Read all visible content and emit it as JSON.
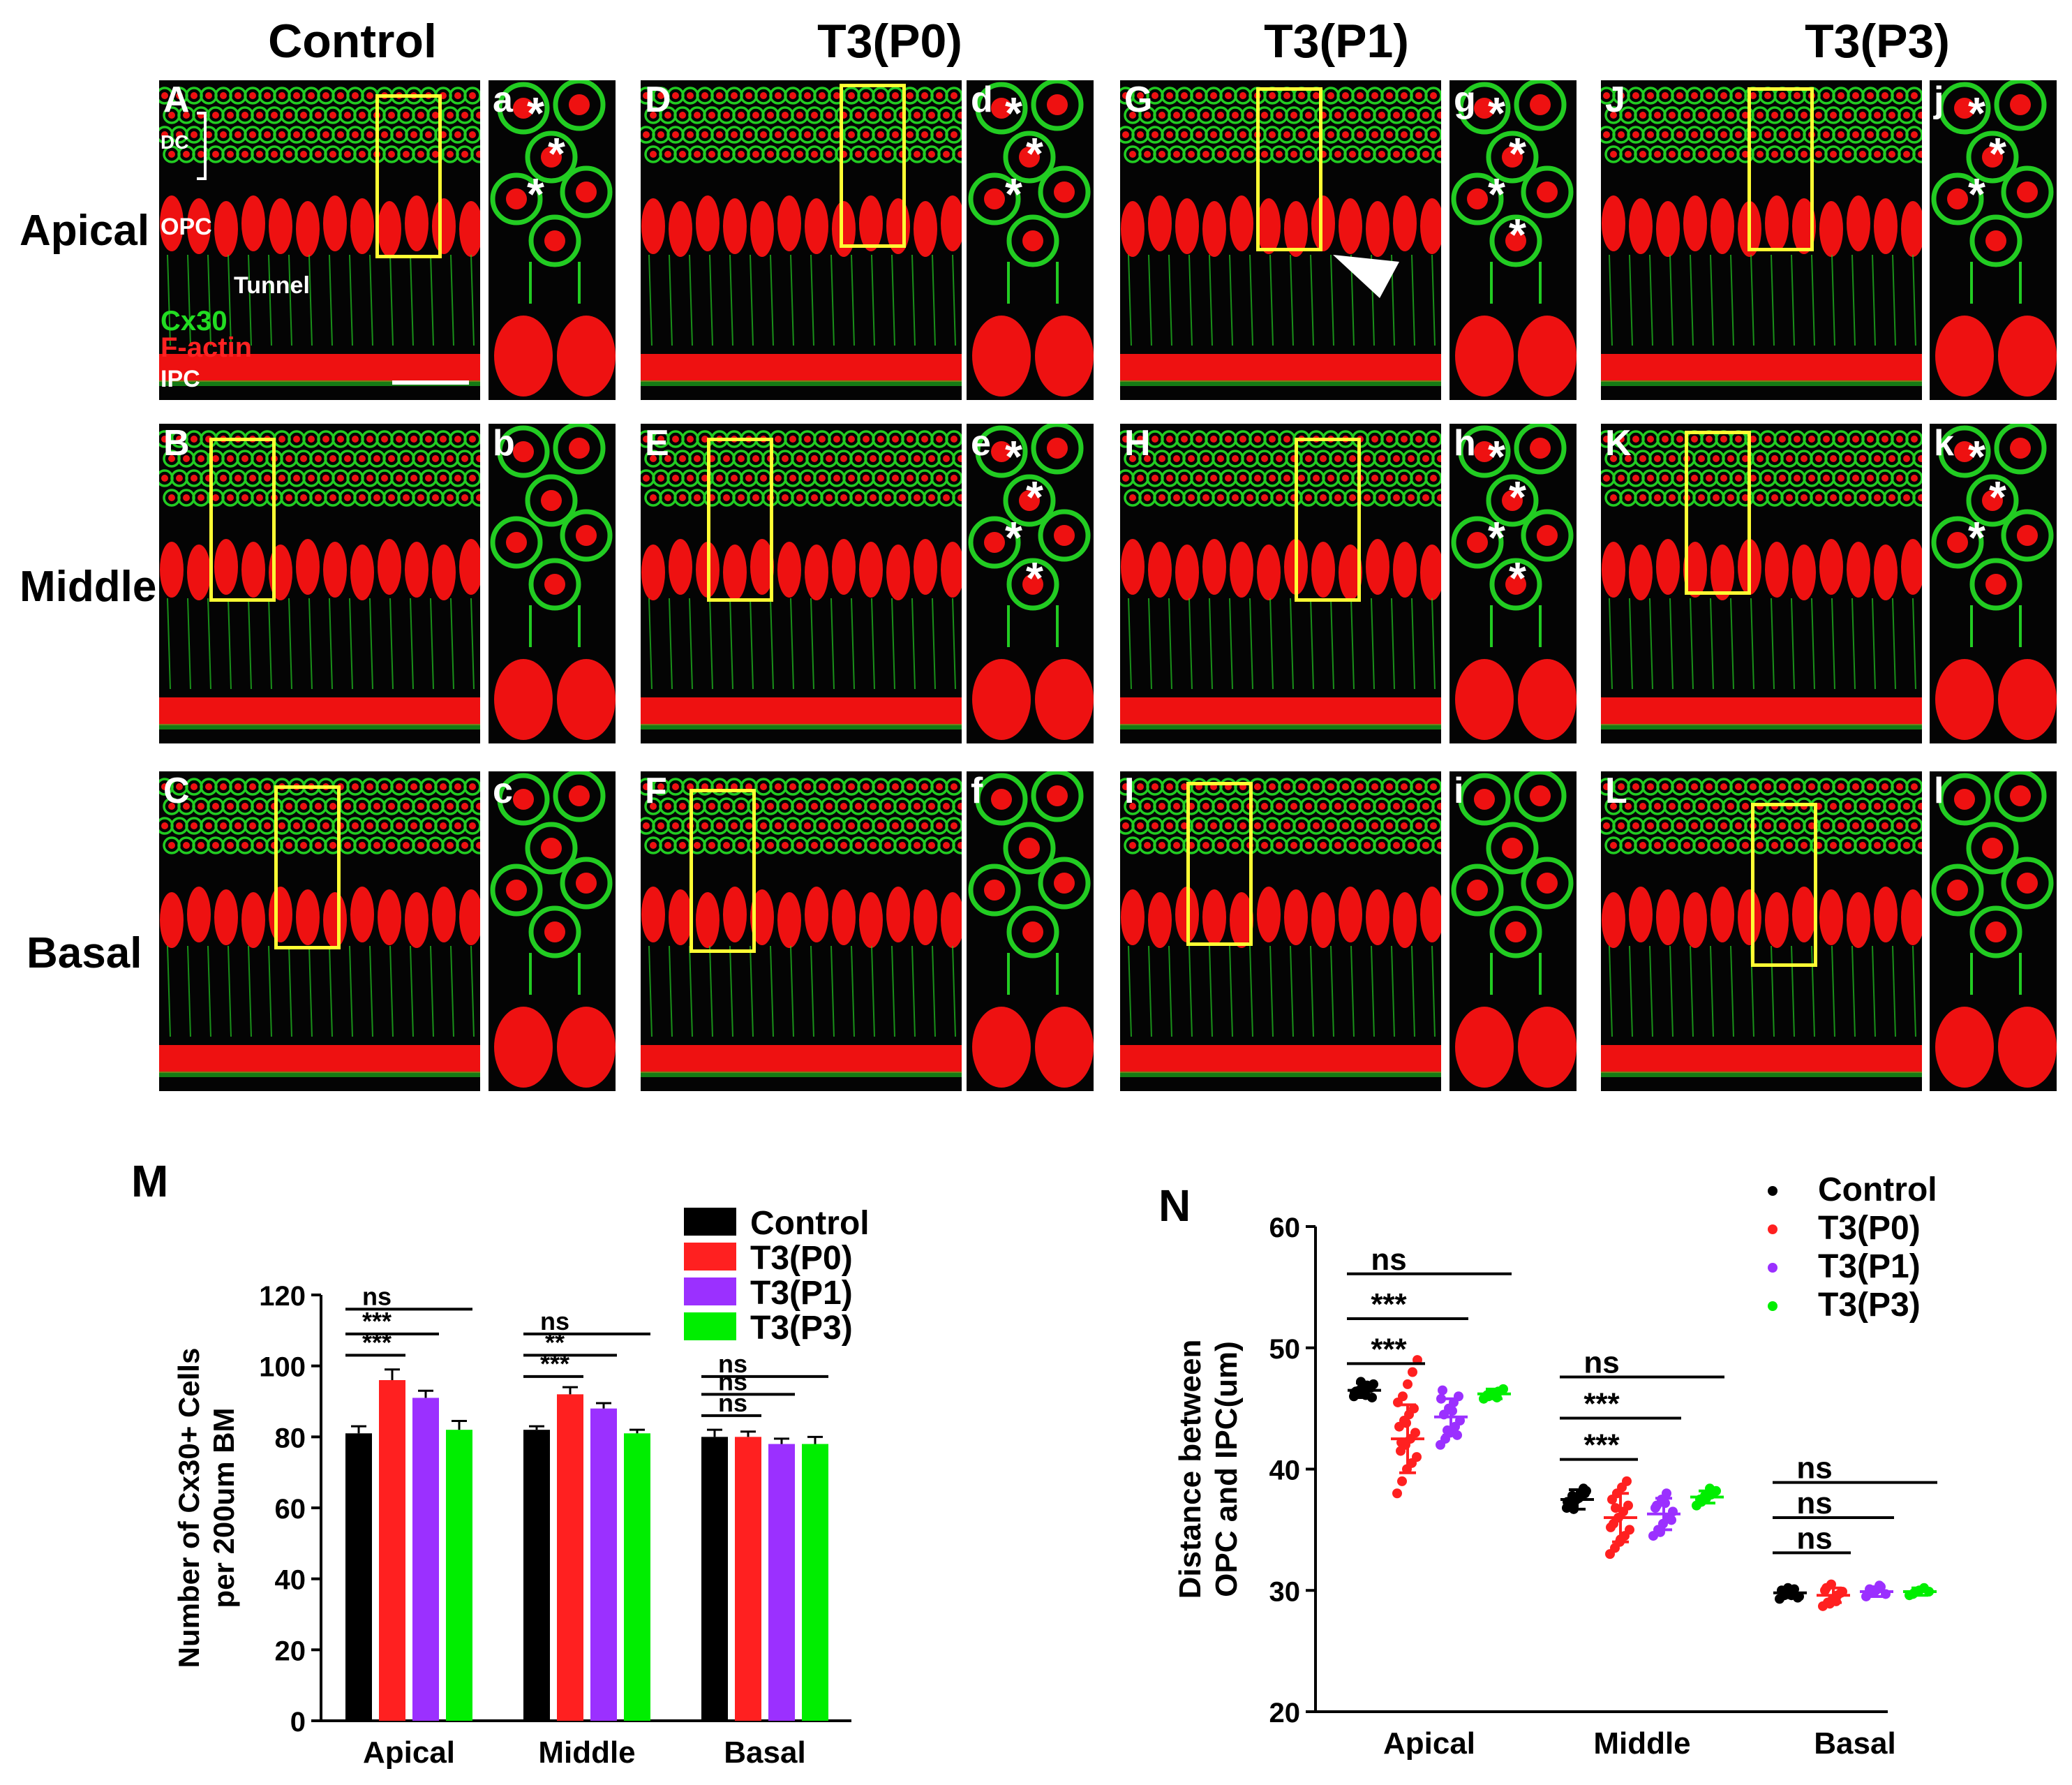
{
  "columns": [
    "Control",
    "T3(P0)",
    "T3(P1)",
    "T3(P3)"
  ],
  "rows": [
    "Apical",
    "Middle",
    "Basal"
  ],
  "panel_labels": {
    "main": [
      [
        "A",
        "D",
        "G",
        "J"
      ],
      [
        "B",
        "E",
        "H",
        "K"
      ],
      [
        "C",
        "F",
        "I",
        "L"
      ]
    ],
    "zoom": [
      [
        "a",
        "d",
        "g",
        "j"
      ],
      [
        "b",
        "e",
        "h",
        "k"
      ],
      [
        "c",
        "f",
        "i",
        "l"
      ]
    ]
  },
  "panel_a_annotations": {
    "dc": "DC",
    "opc": "OPC",
    "tunnel": "Tunnel",
    "cx30": "Cx30",
    "factin": "F-actin",
    "ipc": "IPC"
  },
  "star_glyph": "*",
  "colors": {
    "cx30": "#22cc22",
    "factin": "#ee1111",
    "roi": "#ffff33",
    "control": "#000000",
    "p0": "#ff2020",
    "p1": "#9b30ff",
    "p3": "#00ee00"
  },
  "chart_data": [
    {
      "id": "M",
      "type": "bar",
      "panel_letter": "M",
      "ylabel_line1": "Number of Cx30+ Cells",
      "ylabel_line2": "per 200um BM",
      "ylim": [
        0,
        120
      ],
      "yticks": [
        "0",
        "20",
        "40",
        "60",
        "80",
        "100",
        "120"
      ],
      "categories": [
        "Apical",
        "Middle",
        "Basal"
      ],
      "series": [
        {
          "name": "Control",
          "values": [
            81,
            82,
            80
          ],
          "errors": [
            2,
            1,
            2
          ]
        },
        {
          "name": "T3(P0)",
          "values": [
            96,
            92,
            80
          ],
          "errors": [
            3,
            2,
            1.5
          ]
        },
        {
          "name": "T3(P1)",
          "values": [
            91,
            88,
            78
          ],
          "errors": [
            2,
            1.5,
            1.5
          ]
        },
        {
          "name": "T3(P3)",
          "values": [
            82,
            81,
            78
          ],
          "errors": [
            2.5,
            1,
            2
          ]
        }
      ],
      "significance": [
        {
          "category": "Apical",
          "text": "***",
          "from": 0,
          "to": 1,
          "level": 103
        },
        {
          "category": "Apical",
          "text": "***",
          "from": 0,
          "to": 2,
          "level": 109
        },
        {
          "category": "Apical",
          "text": "ns",
          "from": 0,
          "to": 3,
          "level": 116
        },
        {
          "category": "Middle",
          "text": "***",
          "from": 0,
          "to": 1,
          "level": 97
        },
        {
          "category": "Middle",
          "text": "**",
          "from": 0,
          "to": 2,
          "level": 103
        },
        {
          "category": "Middle",
          "text": "ns",
          "from": 0,
          "to": 3,
          "level": 109
        },
        {
          "category": "Basal",
          "text": "ns",
          "from": 0,
          "to": 1,
          "level": 86
        },
        {
          "category": "Basal",
          "text": "ns",
          "from": 0,
          "to": 2,
          "level": 92
        },
        {
          "category": "Basal",
          "text": "ns",
          "from": 0,
          "to": 3,
          "level": 97
        }
      ],
      "legend": [
        "Control",
        "T3(P0)",
        "T3(P1)",
        "T3(P3)"
      ]
    },
    {
      "id": "N",
      "type": "scatter",
      "panel_letter": "N",
      "ylabel_line1": "Distance between",
      "ylabel_line2": "OPC and IPC(um)",
      "ylim": [
        20,
        60
      ],
      "yticks": [
        "20",
        "30",
        "40",
        "50",
        "60"
      ],
      "categories": [
        "Apical",
        "Middle",
        "Basal"
      ],
      "series": [
        {
          "name": "Control",
          "means": [
            46.5,
            37.5,
            29.8
          ],
          "sd": [
            0.6,
            0.8,
            0.4
          ],
          "points": [
            [
              46.0,
              46.3,
              46.5,
              46.8,
              47.0,
              46.2,
              46.6,
              46.9,
              45.9,
              46.4,
              47.2,
              46.1,
              46.7,
              46.3,
              46.5
            ],
            [
              36.8,
              37.2,
              37.5,
              37.9,
              38.2,
              36.9,
              37.4,
              37.7,
              38.0,
              37.1,
              36.7,
              37.6,
              38.4,
              37.3,
              37.8
            ],
            [
              29.3,
              29.6,
              29.8,
              30.1,
              29.5,
              29.9,
              30.2,
              29.7,
              29.4,
              30.0,
              29.8,
              29.6
            ]
          ]
        },
        {
          "name": "T3(P0)",
          "means": [
            42.5,
            36.0,
            29.6
          ],
          "sd": [
            2.8,
            2.0,
            0.6
          ],
          "points": [
            [
              38.0,
              39.0,
              40.0,
              40.5,
              41.0,
              41.5,
              42.0,
              42.5,
              43.0,
              43.5,
              44.0,
              44.5,
              45.0,
              45.5,
              46.0,
              47.0,
              48.0,
              49.0,
              42.2,
              43.8
            ],
            [
              33.0,
              33.5,
              34.0,
              34.5,
              35.0,
              35.5,
              36.0,
              36.5,
              37.0,
              37.5,
              38.0,
              38.5,
              39.0,
              35.2,
              36.8,
              34.2
            ],
            [
              28.7,
              29.0,
              29.3,
              29.6,
              29.9,
              30.2,
              30.5,
              29.1,
              29.8,
              30.0,
              28.9
            ]
          ]
        },
        {
          "name": "T3(P1)",
          "means": [
            44.3,
            36.3,
            29.9
          ],
          "sd": [
            1.5,
            1.3,
            0.4
          ],
          "points": [
            [
              42.0,
              42.5,
              43.0,
              43.5,
              44.0,
              44.5,
              45.0,
              45.5,
              46.0,
              46.5,
              43.2,
              44.8,
              42.8,
              45.8
            ],
            [
              34.5,
              35.0,
              35.5,
              36.0,
              36.5,
              37.0,
              37.5,
              38.0,
              35.8,
              36.8,
              34.8,
              37.2
            ],
            [
              29.5,
              29.8,
              30.0,
              30.3,
              29.7,
              30.1,
              29.9,
              30.4
            ]
          ]
        },
        {
          "name": "T3(P3)",
          "means": [
            46.2,
            37.7,
            29.9
          ],
          "sd": [
            0.4,
            0.5,
            0.3
          ],
          "points": [
            [
              45.8,
              46.0,
              46.2,
              46.4,
              46.6,
              46.1,
              46.3,
              45.9
            ],
            [
              37.0,
              37.3,
              37.6,
              37.9,
              38.2,
              37.5,
              37.8,
              38.4
            ],
            [
              29.6,
              29.8,
              30.0,
              30.2,
              29.9,
              29.7
            ]
          ]
        }
      ],
      "significance": [
        {
          "category": "Apical",
          "text": "***",
          "from": 0,
          "to": 1,
          "level": 48.7
        },
        {
          "category": "Apical",
          "text": "***",
          "from": 0,
          "to": 2,
          "level": 52.4
        },
        {
          "category": "Apical",
          "text": "ns",
          "from": 0,
          "to": 3,
          "level": 56.1
        },
        {
          "category": "Middle",
          "text": "***",
          "from": 0,
          "to": 1,
          "level": 40.8
        },
        {
          "category": "Middle",
          "text": "***",
          "from": 0,
          "to": 2,
          "level": 44.2
        },
        {
          "category": "Middle",
          "text": "ns",
          "from": 0,
          "to": 3,
          "level": 47.6
        },
        {
          "category": "Basal",
          "text": "ns",
          "from": 0,
          "to": 1,
          "level": 33.1
        },
        {
          "category": "Basal",
          "text": "ns",
          "from": 0,
          "to": 2,
          "level": 36.0
        },
        {
          "category": "Basal",
          "text": "ns",
          "from": 0,
          "to": 3,
          "level": 38.9
        }
      ],
      "legend": [
        "Control",
        "T3(P0)",
        "T3(P1)",
        "T3(P3)"
      ]
    }
  ]
}
